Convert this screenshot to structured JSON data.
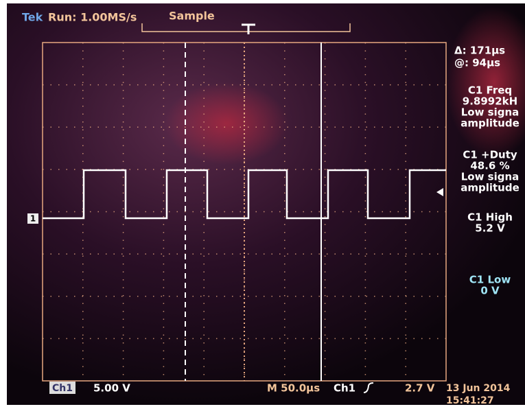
{
  "header": {
    "brand": "Tek",
    "run": "Run: 1.00MS/s",
    "mode": "Sample"
  },
  "channel_marker": "1",
  "cursor": {
    "delta": "Δ: 171μs",
    "at": "@: 94μs"
  },
  "measurements": [
    {
      "lines": [
        "C1 Freq",
        "9.8992kH",
        "Low signa",
        "amplitude"
      ]
    },
    {
      "lines": [
        "C1 +Duty",
        "48.6 %",
        "Low signa",
        "amplitude"
      ]
    },
    {
      "lines": [
        "C1 High",
        "5.2 V"
      ]
    },
    {
      "lines": [
        "C1 Low",
        "0 V"
      ]
    }
  ],
  "footer": {
    "channel": "Ch1",
    "scale": "5.00 V",
    "timebase": "M 50.0μs",
    "trigger_source": "Ch1",
    "trigger_level": "2.7 V",
    "date": "13 Jun 2014",
    "time": "15:41:27"
  }
}
